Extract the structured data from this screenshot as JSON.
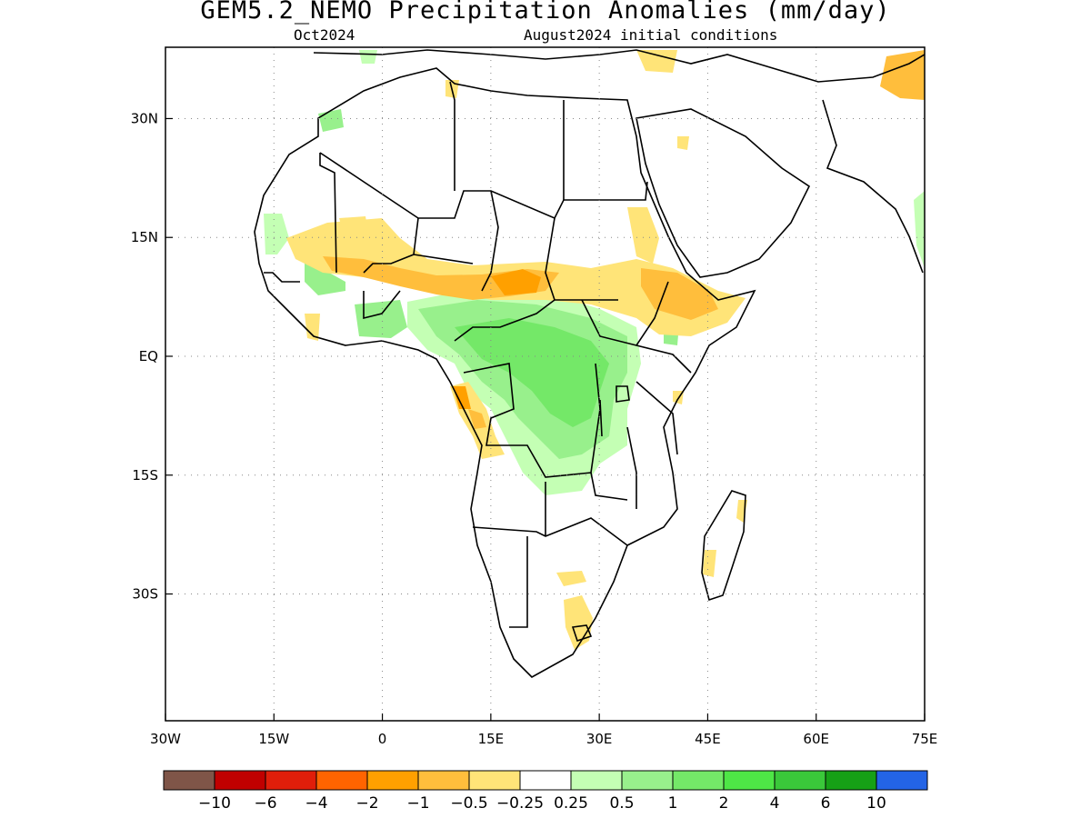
{
  "title": "GEM5.2_NEMO Precipitation Anomalies (mm/day)",
  "subtitle_left": "Oct2024",
  "subtitle_right": "August2024 initial conditions",
  "map": {
    "lon_range": [
      -30,
      75
    ],
    "lat_range": [
      -46,
      39
    ],
    "x_ticks": [
      {
        "value": -30,
        "label": "30W"
      },
      {
        "value": -15,
        "label": "15W"
      },
      {
        "value": 0,
        "label": "0"
      },
      {
        "value": 15,
        "label": "15E"
      },
      {
        "value": 30,
        "label": "30E"
      },
      {
        "value": 45,
        "label": "45E"
      },
      {
        "value": 60,
        "label": "60E"
      },
      {
        "value": 75,
        "label": "75E"
      }
    ],
    "y_ticks": [
      {
        "value": 30,
        "label": "30N"
      },
      {
        "value": 15,
        "label": "15N"
      },
      {
        "value": 0,
        "label": "EQ"
      },
      {
        "value": -15,
        "label": "15S"
      },
      {
        "value": -30,
        "label": "30S"
      }
    ],
    "grid": "dotted"
  },
  "colorbar": {
    "colors": [
      "#7f5548",
      "#c00000",
      "#e01e0a",
      "#ff6400",
      "#ffa000",
      "#ffbe3c",
      "#ffe478",
      "#ffffff",
      "#c4ffb4",
      "#98f08c",
      "#74e868",
      "#4ee646",
      "#3ac83a",
      "#16a016",
      "#2364e6"
    ],
    "labels": [
      "−10",
      "−6",
      "−4",
      "−2",
      "−1",
      "−0.5",
      "−0.25",
      "0.25",
      "0.5",
      "1",
      "2",
      "4",
      "6",
      "10"
    ]
  }
}
